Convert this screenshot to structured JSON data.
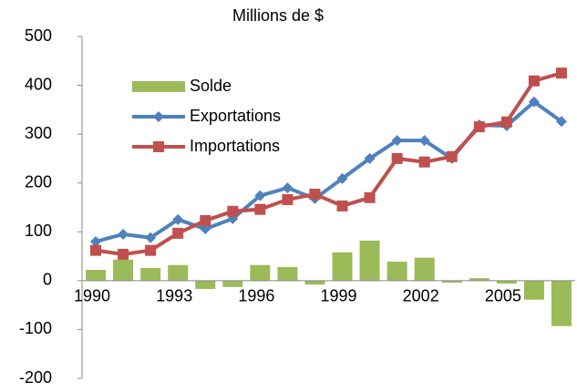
{
  "chart_data": {
    "type": "bar_line",
    "title": "Millions de $",
    "categories": [
      "1990",
      null,
      null,
      "1993",
      null,
      null,
      "1996",
      null,
      null,
      "1999",
      null,
      null,
      "2002",
      null,
      null,
      "2005",
      null,
      null
    ],
    "series": [
      {
        "name": "Solde",
        "type": "bar",
        "color": "#9bbb59",
        "values": [
          22,
          43,
          26,
          32,
          -17,
          -13,
          32,
          28,
          -8,
          58,
          82,
          39,
          47,
          -4,
          5,
          -6,
          -39,
          -93
        ]
      },
      {
        "name": "Exportations",
        "type": "line",
        "marker": "diamond",
        "color": "#4f81bd",
        "values": [
          80,
          95,
          88,
          125,
          106,
          127,
          174,
          190,
          168,
          209,
          250,
          287,
          287,
          250,
          319,
          317,
          366,
          326
        ]
      },
      {
        "name": "Importations",
        "type": "line",
        "marker": "square",
        "color": "#c0504d",
        "values": [
          62,
          54,
          62,
          97,
          123,
          142,
          146,
          166,
          177,
          153,
          170,
          250,
          243,
          254,
          315,
          325,
          409,
          425
        ]
      }
    ],
    "ylim": [
      -200,
      500
    ],
    "yticks": [
      -200,
      -100,
      0,
      100,
      200,
      300,
      400,
      500
    ],
    "grid": false
  }
}
